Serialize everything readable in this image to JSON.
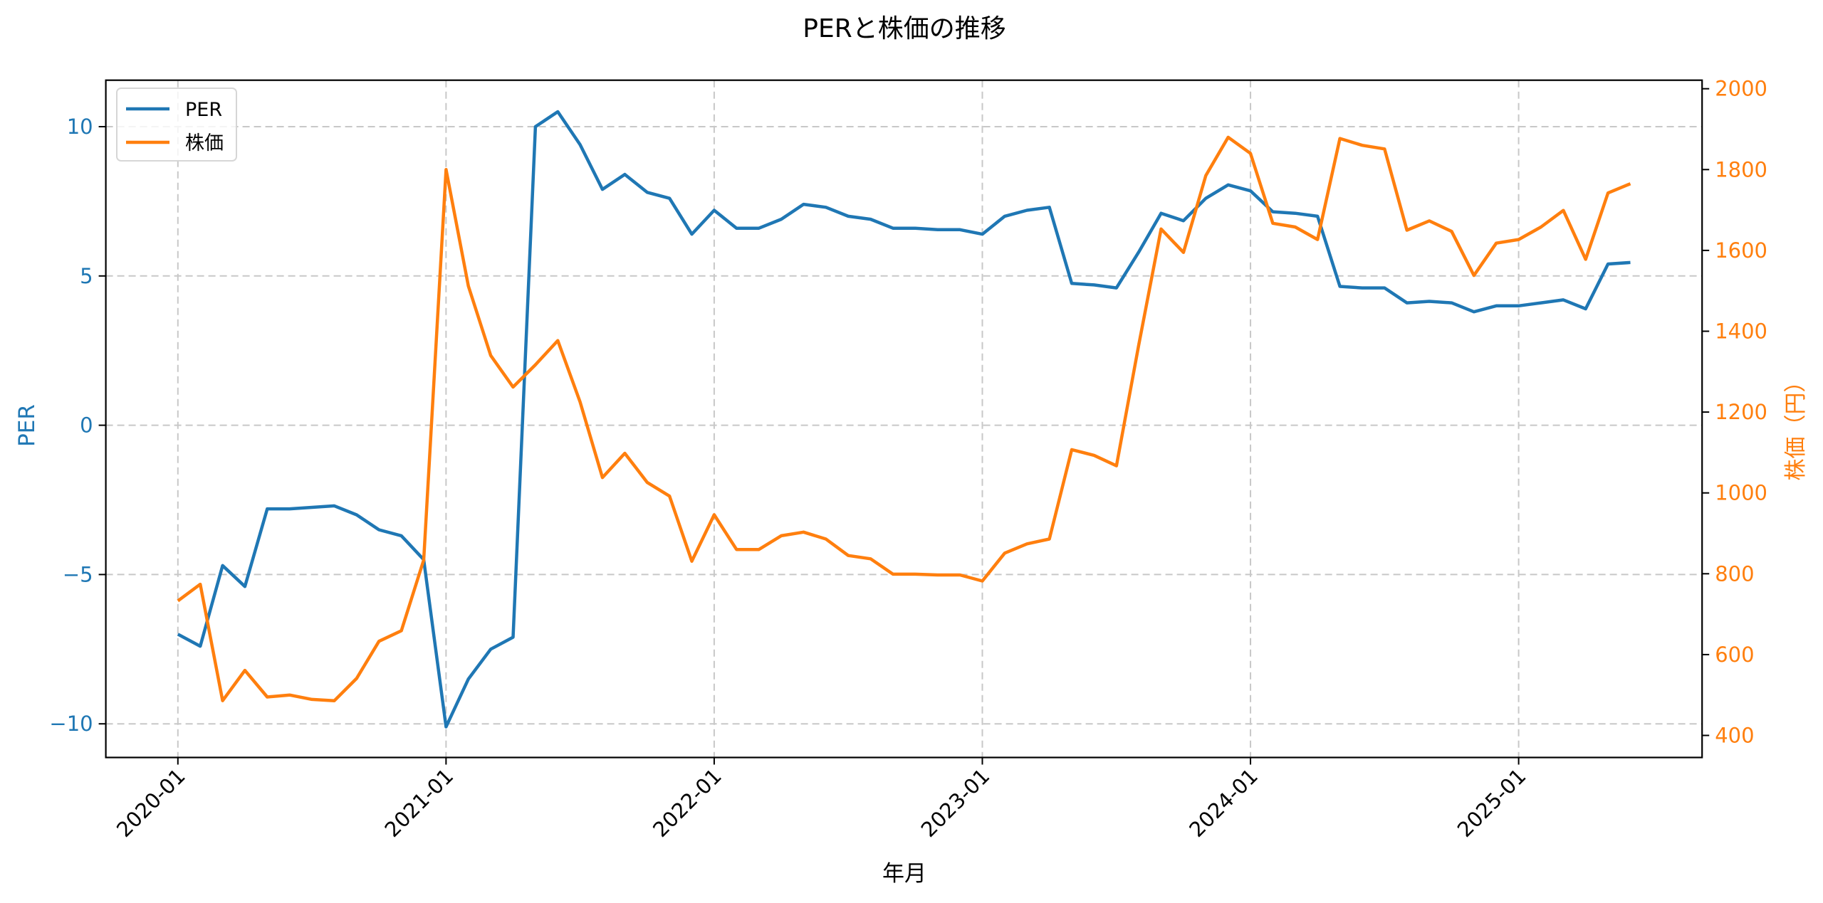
{
  "chart_data": {
    "type": "line",
    "title": "PERと株価の推移",
    "xlabel": "年月",
    "ylabel_left": "PER",
    "ylabel_right": "株価（円）",
    "x_tick_labels": [
      "2020-01",
      "2021-01",
      "2022-01",
      "2023-01",
      "2024-01",
      "2025-01"
    ],
    "y_left_ticks": [
      -10,
      -5,
      0,
      5,
      10
    ],
    "y_right_ticks": [
      400,
      600,
      800,
      1000,
      1200,
      1400,
      1600,
      1800,
      2000
    ],
    "y_left_range": [
      -11.3,
      11.7
    ],
    "y_right_range": [
      345,
      2010
    ],
    "grid": true,
    "legend_position": "upper left",
    "x": [
      "2020-01",
      "2020-02",
      "2020-03",
      "2020-04",
      "2020-05",
      "2020-06",
      "2020-07",
      "2020-08",
      "2020-09",
      "2020-10",
      "2020-11",
      "2020-12",
      "2021-01",
      "2021-02",
      "2021-03",
      "2021-04",
      "2021-05",
      "2021-06",
      "2021-07",
      "2021-08",
      "2021-09",
      "2021-10",
      "2021-11",
      "2021-12",
      "2022-01",
      "2022-02",
      "2022-03",
      "2022-04",
      "2022-05",
      "2022-06",
      "2022-07",
      "2022-08",
      "2022-09",
      "2022-10",
      "2022-11",
      "2022-12",
      "2023-01",
      "2023-02",
      "2023-03",
      "2023-04",
      "2023-05",
      "2023-06",
      "2023-07",
      "2023-08",
      "2023-09",
      "2023-10",
      "2023-11",
      "2023-12",
      "2024-01",
      "2024-02",
      "2024-03",
      "2024-04",
      "2024-05",
      "2024-06",
      "2024-07",
      "2024-08",
      "2024-09",
      "2024-10",
      "2024-11",
      "2024-12",
      "2025-01",
      "2025-02",
      "2025-03",
      "2025-04",
      "2025-05",
      "2025-06"
    ],
    "series": [
      {
        "name": "PER",
        "axis": "left",
        "color": "#1f77b4",
        "values": [
          -7.0,
          -7.4,
          -4.7,
          -5.4,
          -2.8,
          -2.8,
          -2.75,
          -2.7,
          -3.0,
          -3.5,
          -3.7,
          -4.5,
          -10.1,
          -8.5,
          -7.5,
          -7.1,
          10.0,
          10.5,
          9.4,
          7.9,
          8.4,
          7.8,
          7.6,
          6.4,
          7.2,
          6.6,
          6.6,
          6.9,
          7.4,
          7.3,
          7.0,
          6.9,
          6.6,
          6.6,
          6.55,
          6.55,
          6.4,
          7.0,
          7.2,
          7.3,
          4.75,
          4.7,
          4.6,
          5.8,
          7.1,
          6.85,
          7.6,
          8.05,
          7.85,
          7.15,
          7.1,
          7.0,
          4.65,
          4.6,
          4.6,
          4.1,
          4.15,
          4.1,
          3.8,
          4.0,
          4.0,
          4.1,
          4.2,
          3.9,
          5.4,
          5.45
        ]
      },
      {
        "name": "株価",
        "axis": "right",
        "color": "#ff7f0e",
        "values": [
          733,
          774,
          486,
          561,
          495,
          500,
          489,
          486,
          541,
          633,
          659,
          834,
          1800,
          1512,
          1340,
          1262,
          1317,
          1377,
          1225,
          1038,
          1098,
          1026,
          992,
          831,
          946,
          860,
          860,
          894,
          903,
          886,
          845,
          837,
          799,
          799,
          797,
          797,
          782,
          851,
          874,
          886,
          1107,
          1093,
          1067,
          1366,
          1653,
          1595,
          1785,
          1880,
          1840,
          1667,
          1658,
          1627,
          1877,
          1860,
          1851,
          1650,
          1673,
          1647,
          1538,
          1618,
          1627,
          1658,
          1699,
          1578,
          1742,
          1765
        ]
      }
    ]
  },
  "colors": {
    "per": "#1f77b4",
    "price": "#ff7f0e",
    "grid": "#c8c8c8",
    "axis": "#000000"
  },
  "legend": {
    "items": [
      {
        "label": "PER",
        "color": "#1f77b4"
      },
      {
        "label": "株価",
        "color": "#ff7f0e"
      }
    ]
  }
}
